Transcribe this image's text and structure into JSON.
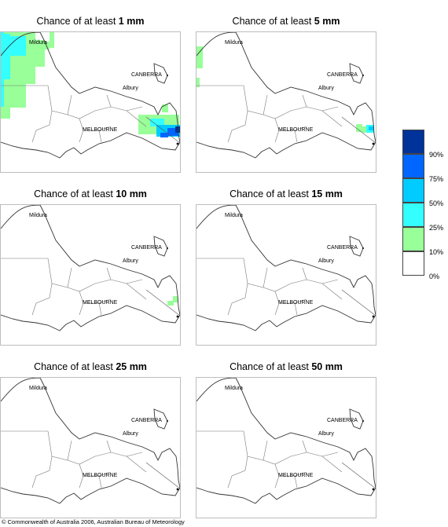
{
  "labels": {
    "mildura": "Mildura",
    "canberra": "CANBERRA",
    "albury": "Albury",
    "melbourne": "MELBOURNE"
  },
  "panels": [
    {
      "prefix": "Chance of at least ",
      "amount": "1 mm"
    },
    {
      "prefix": "Chance of at least ",
      "amount": "5 mm"
    },
    {
      "prefix": "Chance of at least ",
      "amount": "10 mm"
    },
    {
      "prefix": "Chance of at least ",
      "amount": "15 mm"
    },
    {
      "prefix": "Chance of at least ",
      "amount": "25 mm"
    },
    {
      "prefix": "Chance of at least ",
      "amount": "50 mm"
    }
  ],
  "legend": {
    "classes": [
      {
        "color": "#003399"
      },
      {
        "color": "#0066ff"
      },
      {
        "color": "#00ccff"
      },
      {
        "color": "#33ffff"
      },
      {
        "color": "#99ff99"
      },
      {
        "color": "#ffffff"
      }
    ],
    "ticks": [
      "90%",
      "75%",
      "50%",
      "25%",
      "10%",
      "0%"
    ]
  },
  "copyright": "© Commonwealth of Australia 2006, Australian Bureau of Meteorology"
}
